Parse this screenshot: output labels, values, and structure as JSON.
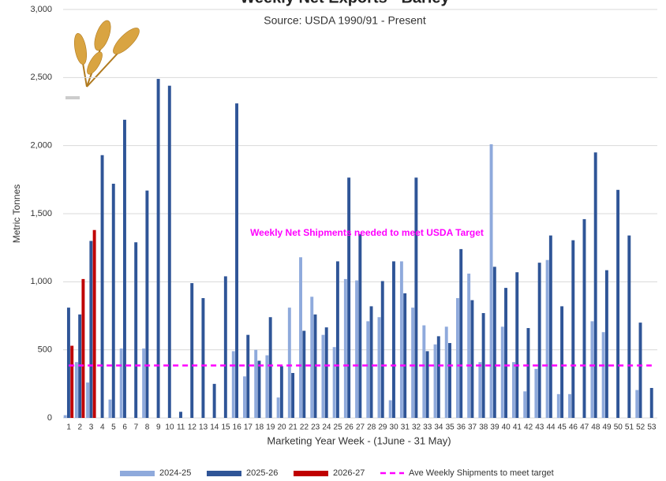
{
  "chart_data": {
    "type": "bar",
    "title": "Weekly Net Exports - Barley",
    "subtitle": "Source: USDA 1990/91 - Present",
    "x_label": "Marketing Year Week - (1June - 31 May)",
    "y_label": "Metric Tonnes",
    "annotation": "Weekly Net Shipments needed to meet USDA Target",
    "categories": [
      1,
      2,
      3,
      4,
      5,
      6,
      7,
      8,
      9,
      10,
      11,
      12,
      13,
      14,
      15,
      16,
      17,
      18,
      19,
      20,
      21,
      22,
      23,
      24,
      25,
      26,
      27,
      28,
      29,
      30,
      31,
      32,
      33,
      34,
      35,
      36,
      37,
      38,
      39,
      40,
      41,
      42,
      43,
      44,
      45,
      46,
      47,
      48,
      49,
      50,
      51,
      52,
      53
    ],
    "series": [
      {
        "name": "2024-25",
        "color": "#8faadc",
        "type": "bar",
        "values": [
          20,
          410,
          260,
          0,
          135,
          510,
          0,
          510,
          0,
          0,
          0,
          0,
          0,
          0,
          0,
          490,
          305,
          500,
          460,
          150,
          810,
          1180,
          890,
          610,
          520,
          1020,
          1010,
          710,
          740,
          130,
          1150,
          810,
          680,
          540,
          670,
          880,
          1060,
          410,
          2010,
          670,
          410,
          195,
          360,
          1160,
          175,
          175,
          0,
          710,
          630,
          0,
          0,
          205,
          0
        ]
      },
      {
        "name": "2025-26",
        "color": "#2f5597",
        "type": "bar",
        "values": [
          810,
          760,
          1300,
          1930,
          1720,
          2190,
          1290,
          1670,
          2490,
          2440,
          45,
          990,
          880,
          250,
          1040,
          2310,
          610,
          420,
          740,
          380,
          330,
          640,
          760,
          665,
          1150,
          1765,
          1350,
          820,
          1005,
          1150,
          915,
          1765,
          490,
          600,
          550,
          1240,
          865,
          770,
          1110,
          955,
          1070,
          660,
          1140,
          1340,
          820,
          1305,
          1460,
          1950,
          1085,
          1675,
          1340,
          700,
          220
        ]
      },
      {
        "name": "2026-27",
        "color": "#c00000",
        "type": "bar",
        "values": [
          530,
          1020,
          1380,
          null,
          null,
          null,
          null,
          null,
          null,
          null,
          null,
          null,
          null,
          null,
          null,
          null,
          null,
          null,
          null,
          null,
          null,
          null,
          null,
          null,
          null,
          null,
          null,
          null,
          null,
          null,
          null,
          null,
          null,
          null,
          null,
          null,
          null,
          null,
          null,
          null,
          null,
          null,
          null,
          null,
          null,
          null,
          null,
          null,
          null,
          null,
          null,
          null,
          null
        ]
      },
      {
        "name": "Ave Weekly Shipments to meet target",
        "color": "#ff00ff",
        "type": "line",
        "values": [
          385,
          385,
          385,
          385,
          385,
          385,
          385,
          385,
          385,
          385,
          385,
          385,
          385,
          385,
          385,
          385,
          385,
          385,
          385,
          385,
          385,
          385,
          385,
          385,
          385,
          385,
          385,
          385,
          385,
          385,
          385,
          385,
          385,
          385,
          385,
          385,
          385,
          385,
          385,
          385,
          385,
          385,
          385,
          385,
          385,
          385,
          385,
          385,
          385,
          385,
          385,
          385,
          385
        ]
      }
    ],
    "ylim": [
      0,
      3000
    ],
    "yticks": [
      0,
      500,
      {
        "value": 1000,
        "label": "1,000"
      },
      {
        "value": 1500,
        "label": "1,500"
      },
      {
        "value": 2000,
        "label": "2,000"
      },
      {
        "value": 2500,
        "label": "2,500"
      },
      {
        "value": 3000,
        "label": "3,000"
      }
    ],
    "grid": true
  }
}
